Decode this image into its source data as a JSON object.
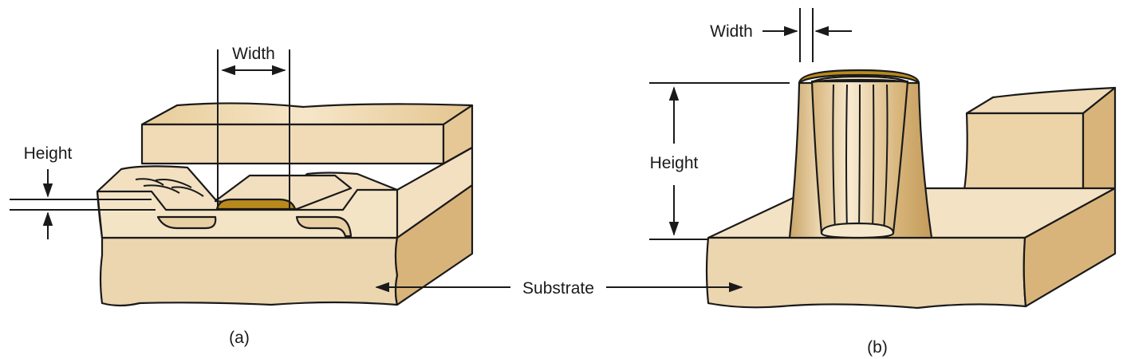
{
  "figure_a": {
    "caption": "(a)",
    "width_label": "Width",
    "height_label": "Height"
  },
  "figure_b": {
    "caption": "(b)",
    "width_label": "Width",
    "height_label": "Height"
  },
  "shared": {
    "substrate_label": "Substrate"
  },
  "colors": {
    "substrate_front": "#ecd6b0",
    "substrate_side": "#d9b47a",
    "substrate_top": "#f3e2c4",
    "layer_top": "#f1dfbf",
    "layer_front": "#f0dcb8",
    "feature_fill": "#b88a1c",
    "pillar_body": "#e3c48e",
    "outline": "#1a1a1a"
  }
}
